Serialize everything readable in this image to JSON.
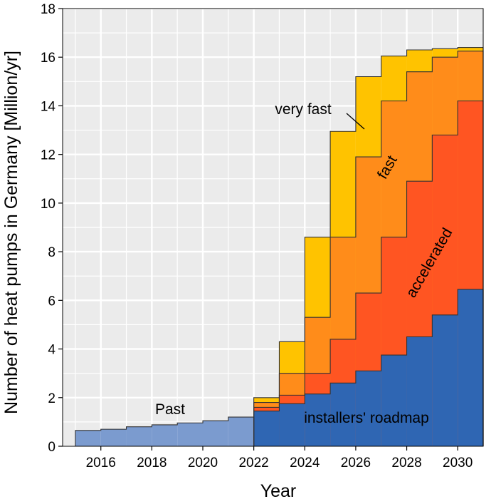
{
  "chart_data": {
    "type": "area",
    "step": true,
    "xlabel": "Year",
    "ylabel": "Number of heat pumps in Germany [Million/yr]",
    "xlim": [
      2014.5,
      2031
    ],
    "ylim": [
      0,
      18
    ],
    "xticks": [
      2016,
      2018,
      2020,
      2022,
      2024,
      2026,
      2028,
      2030
    ],
    "yticks": [
      0,
      2,
      4,
      6,
      8,
      10,
      12,
      14,
      16,
      18
    ],
    "grid": true,
    "years": [
      2015,
      2016,
      2017,
      2018,
      2019,
      2020,
      2021,
      2022,
      2023,
      2024,
      2025,
      2026,
      2027,
      2028,
      2029,
      2030
    ],
    "series": [
      {
        "name": "Past",
        "color": "#7b9bcf",
        "values": [
          0.65,
          0.7,
          0.8,
          0.88,
          0.96,
          1.05,
          1.2
        ]
      },
      {
        "name": "installers' roadmap",
        "color": "#2f66b3",
        "values": [
          null,
          null,
          null,
          null,
          null,
          null,
          null,
          1.45,
          1.75,
          2.15,
          2.6,
          3.1,
          3.75,
          4.5,
          5.4,
          6.45
        ]
      },
      {
        "name": "accelerated",
        "color": "#ff5522",
        "values": [
          null,
          null,
          null,
          null,
          null,
          null,
          null,
          1.6,
          2.1,
          3.0,
          4.4,
          6.3,
          8.6,
          10.9,
          12.8,
          14.2
        ]
      },
      {
        "name": "fast",
        "color": "#ff8c1a",
        "values": [
          null,
          null,
          null,
          null,
          null,
          null,
          null,
          1.8,
          3.0,
          5.3,
          8.6,
          11.9,
          14.2,
          15.4,
          16.0,
          16.25
        ]
      },
      {
        "name": "very fast",
        "color": "#ffc300",
        "values": [
          null,
          null,
          null,
          null,
          null,
          null,
          null,
          2.0,
          4.3,
          8.6,
          12.95,
          15.2,
          16.05,
          16.3,
          16.35,
          16.4
        ]
      }
    ],
    "annotations": {
      "past": "Past",
      "roadmap": "installers' roadmap",
      "accelerated": "accelerated",
      "fast": "fast",
      "very_fast": "very fast"
    }
  }
}
